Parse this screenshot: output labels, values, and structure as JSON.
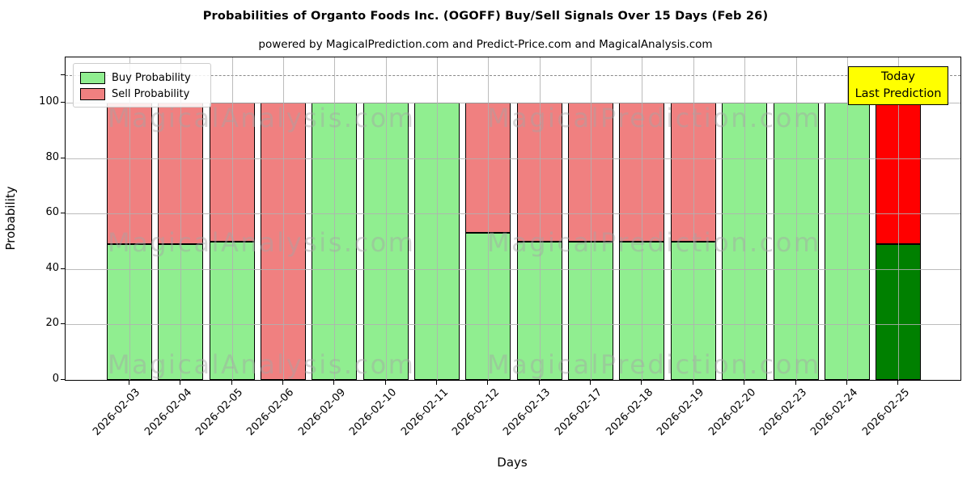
{
  "title": "Probabilities of Organto Foods Inc. (OGOFF) Buy/Sell Signals Over 15 Days (Feb 26)",
  "subtitle": "powered by MagicalPrediction.com and Predict-Price.com and MagicalAnalysis.com",
  "watermarks": {
    "left": "MagicalAnalysis.com",
    "right": "MagicalPrediction.com"
  },
  "annotation": {
    "line1": "Today",
    "line2": "Last Prediction",
    "bg_color": "#ffff00",
    "border_color": "#000000"
  },
  "legend": [
    {
      "label": "Buy Probability",
      "color": "#90ee90"
    },
    {
      "label": "Sell Probability",
      "color": "#f08080"
    }
  ],
  "chart_data": {
    "type": "bar",
    "stacked": true,
    "title": "Probabilities of Organto Foods Inc. (OGOFF) Buy/Sell Signals Over 15 Days (Feb 26)",
    "xlabel": "Days",
    "ylabel": "Probability",
    "categories": [
      "2026-02-03",
      "2026-02-04",
      "2026-02-05",
      "2026-02-06",
      "2026-02-09",
      "2026-02-10",
      "2026-02-11",
      "2026-02-12",
      "2026-02-13",
      "2026-02-17",
      "2026-02-18",
      "2026-02-19",
      "2026-02-20",
      "2026-02-23",
      "2026-02-24",
      "2026-02-25"
    ],
    "series": [
      {
        "name": "Buy Probability",
        "color": "#90ee90",
        "today_color": "#008000",
        "values": [
          49,
          49,
          50,
          0,
          100,
          100,
          100,
          53,
          50,
          50,
          50,
          50,
          100,
          100,
          100,
          49
        ]
      },
      {
        "name": "Sell Probability",
        "color": "#f08080",
        "today_color": "#ff0000",
        "values": [
          51,
          51,
          50,
          100,
          0,
          0,
          0,
          47,
          50,
          50,
          50,
          50,
          0,
          0,
          0,
          51
        ]
      }
    ],
    "today_index": 15,
    "ylim": [
      0,
      116
    ],
    "yticks": [
      0,
      20,
      40,
      60,
      80,
      100
    ],
    "dashed_line_y": 110,
    "grid": true,
    "legend_position": "upper left",
    "bar_edge_color": "#000000"
  }
}
